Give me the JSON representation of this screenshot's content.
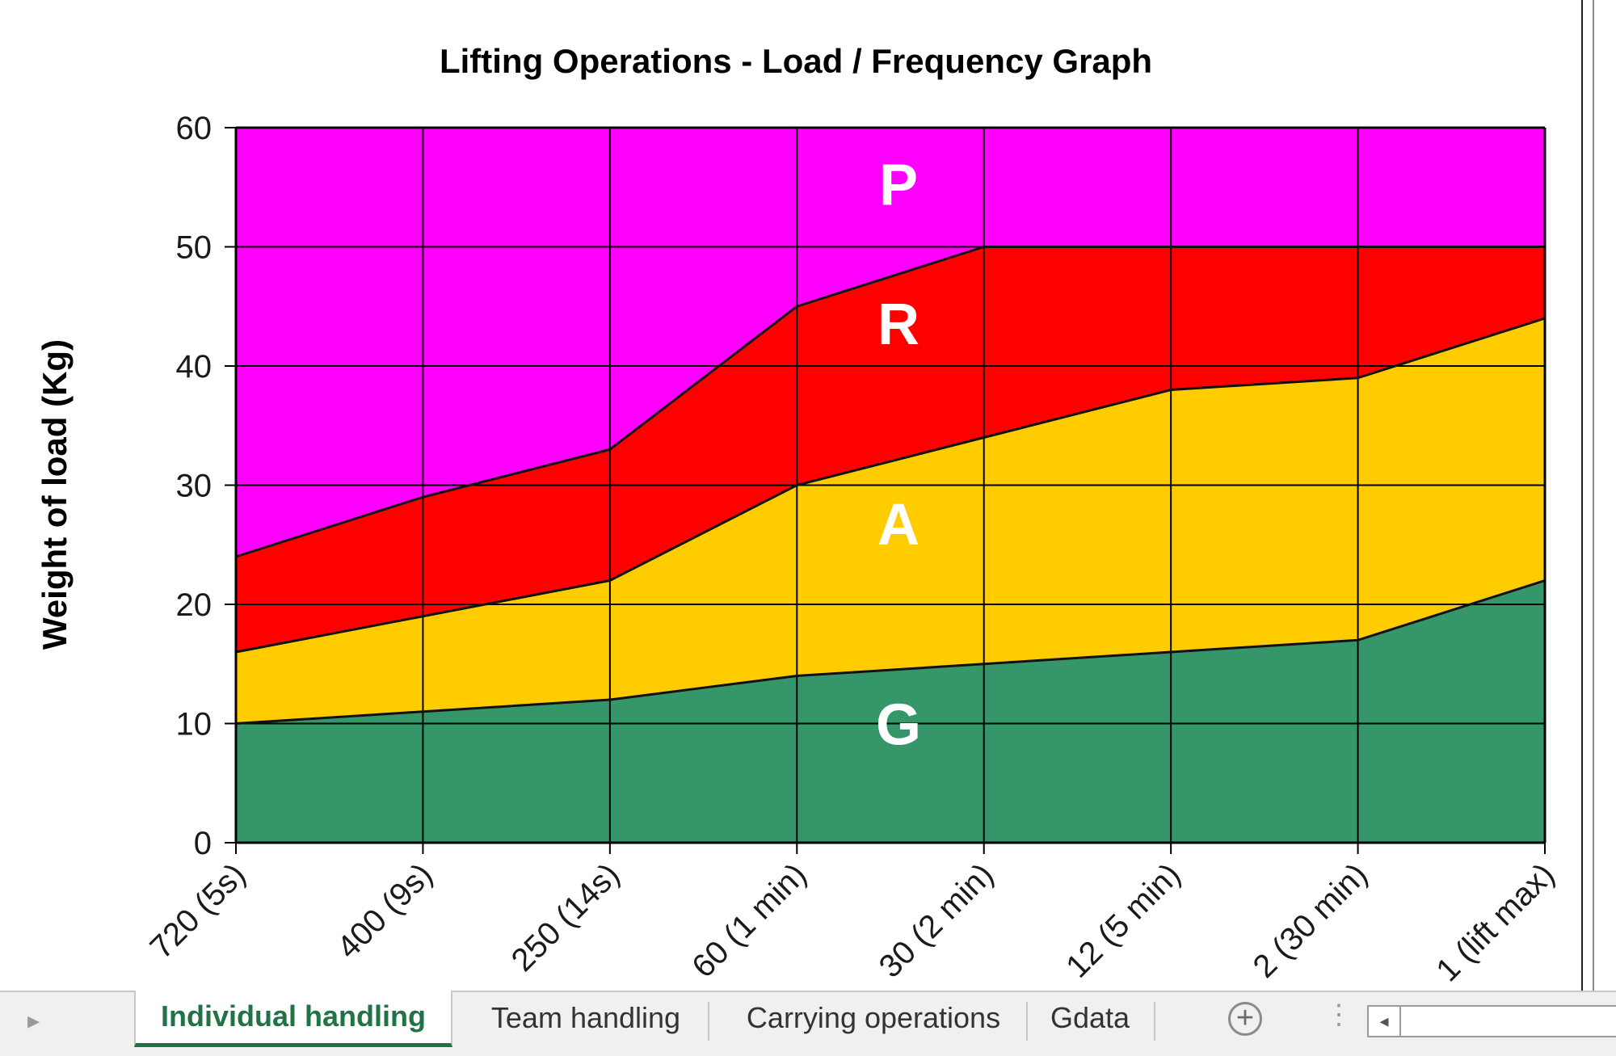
{
  "chart_data": {
    "type": "area",
    "title": "Lifting Operations - Load / Frequency Graph",
    "ylabel": "Weight of load (Kg)",
    "xlabel": "",
    "ylim": [
      0,
      60
    ],
    "yticks": [
      "0",
      "10",
      "20",
      "30",
      "40",
      "50",
      "60"
    ],
    "categories": [
      "720 (5s)",
      "400 (9s)",
      "250 (14s)",
      "60 (1 min)",
      "30 (2 min)",
      "12 (5 min)",
      "2 (30 min)",
      "1 (lift max)"
    ],
    "grid": true,
    "legend": "none",
    "bands": [
      {
        "label": "G",
        "color": "#359669",
        "values": [
          10,
          11,
          12,
          14,
          15,
          16,
          17,
          22
        ]
      },
      {
        "label": "A",
        "color": "#ffcc00",
        "values": [
          16,
          19,
          22,
          30,
          34,
          38,
          39,
          44
        ]
      },
      {
        "label": "R",
        "color": "#ff0000",
        "values": [
          24,
          29,
          33,
          45,
          50,
          50,
          50,
          50
        ]
      },
      {
        "label": "P",
        "color": "#ff00ff",
        "values": [
          60,
          60,
          60,
          60,
          60,
          60,
          60,
          60
        ]
      }
    ]
  },
  "tabs": {
    "items": [
      "Individual handling",
      "Team handling",
      "Carrying operations",
      "Gdata"
    ],
    "active": "Individual handling"
  }
}
